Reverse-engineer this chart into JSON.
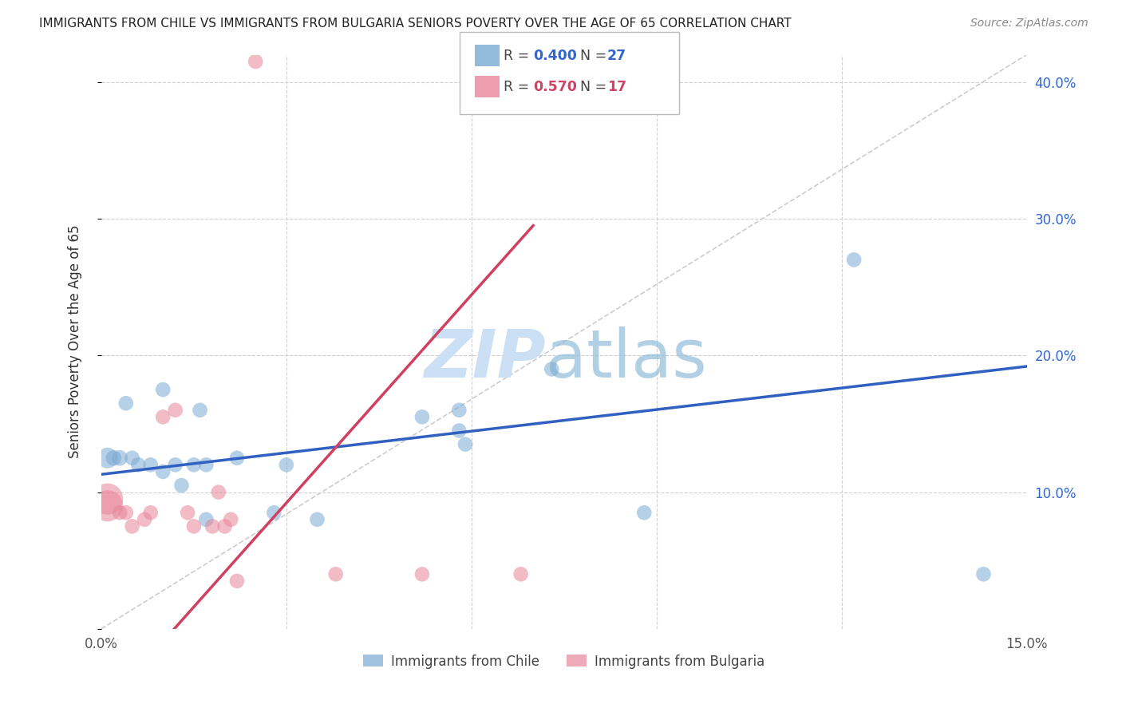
{
  "title": "IMMIGRANTS FROM CHILE VS IMMIGRANTS FROM BULGARIA SENIORS POVERTY OVER THE AGE OF 65 CORRELATION CHART",
  "source": "Source: ZipAtlas.com",
  "ylabel": "Seniors Poverty Over the Age of 65",
  "xlim": [
    0.0,
    0.15
  ],
  "ylim": [
    0.0,
    0.42
  ],
  "chile_color": "#7aaad4",
  "bulgaria_color": "#e8869a",
  "chile_line_color": "#3060c0",
  "bulgaria_line_color": "#d04060",
  "diagonal_color": "#cccccc",
  "chile_points": [
    [
      0.001,
      0.125
    ],
    [
      0.002,
      0.125
    ],
    [
      0.003,
      0.125
    ],
    [
      0.004,
      0.165
    ],
    [
      0.005,
      0.125
    ],
    [
      0.006,
      0.12
    ],
    [
      0.008,
      0.12
    ],
    [
      0.01,
      0.175
    ],
    [
      0.01,
      0.115
    ],
    [
      0.012,
      0.12
    ],
    [
      0.013,
      0.105
    ],
    [
      0.015,
      0.12
    ],
    [
      0.016,
      0.16
    ],
    [
      0.017,
      0.12
    ],
    [
      0.017,
      0.08
    ],
    [
      0.022,
      0.125
    ],
    [
      0.028,
      0.085
    ],
    [
      0.03,
      0.12
    ],
    [
      0.035,
      0.08
    ],
    [
      0.052,
      0.155
    ],
    [
      0.058,
      0.16
    ],
    [
      0.058,
      0.145
    ],
    [
      0.059,
      0.135
    ],
    [
      0.073,
      0.19
    ],
    [
      0.088,
      0.085
    ],
    [
      0.122,
      0.27
    ],
    [
      0.143,
      0.04
    ]
  ],
  "bulgaria_points": [
    [
      0.001,
      0.095
    ],
    [
      0.001,
      0.09
    ],
    [
      0.003,
      0.085
    ],
    [
      0.004,
      0.085
    ],
    [
      0.005,
      0.075
    ],
    [
      0.007,
      0.08
    ],
    [
      0.008,
      0.085
    ],
    [
      0.01,
      0.155
    ],
    [
      0.012,
      0.16
    ],
    [
      0.014,
      0.085
    ],
    [
      0.015,
      0.075
    ],
    [
      0.018,
      0.075
    ],
    [
      0.019,
      0.1
    ],
    [
      0.02,
      0.075
    ],
    [
      0.021,
      0.08
    ],
    [
      0.022,
      0.035
    ],
    [
      0.025,
      0.415
    ],
    [
      0.038,
      0.04
    ],
    [
      0.052,
      0.04
    ],
    [
      0.068,
      0.04
    ]
  ],
  "chile_marker_sizes": [
    350,
    200,
    200,
    180,
    180,
    180,
    180,
    180,
    180,
    180,
    180,
    180,
    180,
    180,
    180,
    180,
    180,
    180,
    180,
    180,
    180,
    180,
    180,
    180,
    180,
    180,
    180
  ],
  "bulgaria_marker_sizes": [
    800,
    800,
    180,
    180,
    180,
    180,
    180,
    180,
    180,
    180,
    180,
    180,
    180,
    180,
    180,
    180,
    180,
    180,
    180,
    180
  ],
  "chile_line": [
    0.0,
    0.113,
    0.15,
    0.192
  ],
  "bulgaria_line": [
    0.0,
    -0.06,
    0.07,
    0.295
  ]
}
